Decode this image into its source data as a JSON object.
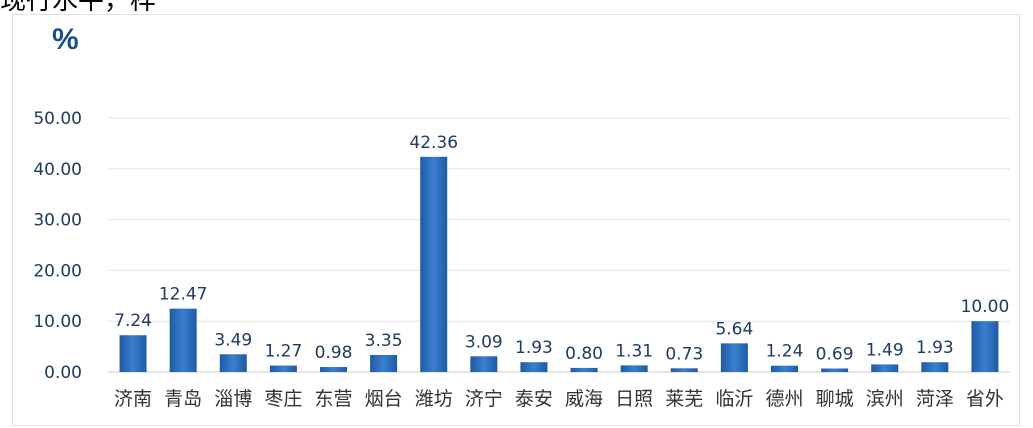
{
  "header": {
    "top_text": "现行水平，样"
  },
  "chart_data": {
    "type": "bar",
    "unit_label": "%",
    "categories": [
      "济南",
      "青岛",
      "淄博",
      "枣庄",
      "东营",
      "烟台",
      "潍坊",
      "济宁",
      "泰安",
      "威海",
      "日照",
      "莱芜",
      "临沂",
      "德州",
      "聊城",
      "滨州",
      "菏泽",
      "省外"
    ],
    "values": [
      7.24,
      12.47,
      3.49,
      1.27,
      0.98,
      3.35,
      42.36,
      3.09,
      1.93,
      0.8,
      1.31,
      0.73,
      5.64,
      1.24,
      0.69,
      1.49,
      1.93,
      10.0
    ],
    "value_labels": [
      "7.24",
      "12.47",
      "3.49",
      "1.27",
      "0.98",
      "3.35",
      "42.36",
      "3.09",
      "1.93",
      "0.80",
      "1.31",
      "0.73",
      "5.64",
      "1.24",
      "0.69",
      "1.49",
      "1.93",
      "10.00"
    ],
    "yticks": [
      "0.00",
      "10.00",
      "20.00",
      "30.00",
      "40.00",
      "50.00"
    ],
    "ylim": [
      0,
      50
    ],
    "grid": true,
    "bar_color": "#2f6db5"
  }
}
